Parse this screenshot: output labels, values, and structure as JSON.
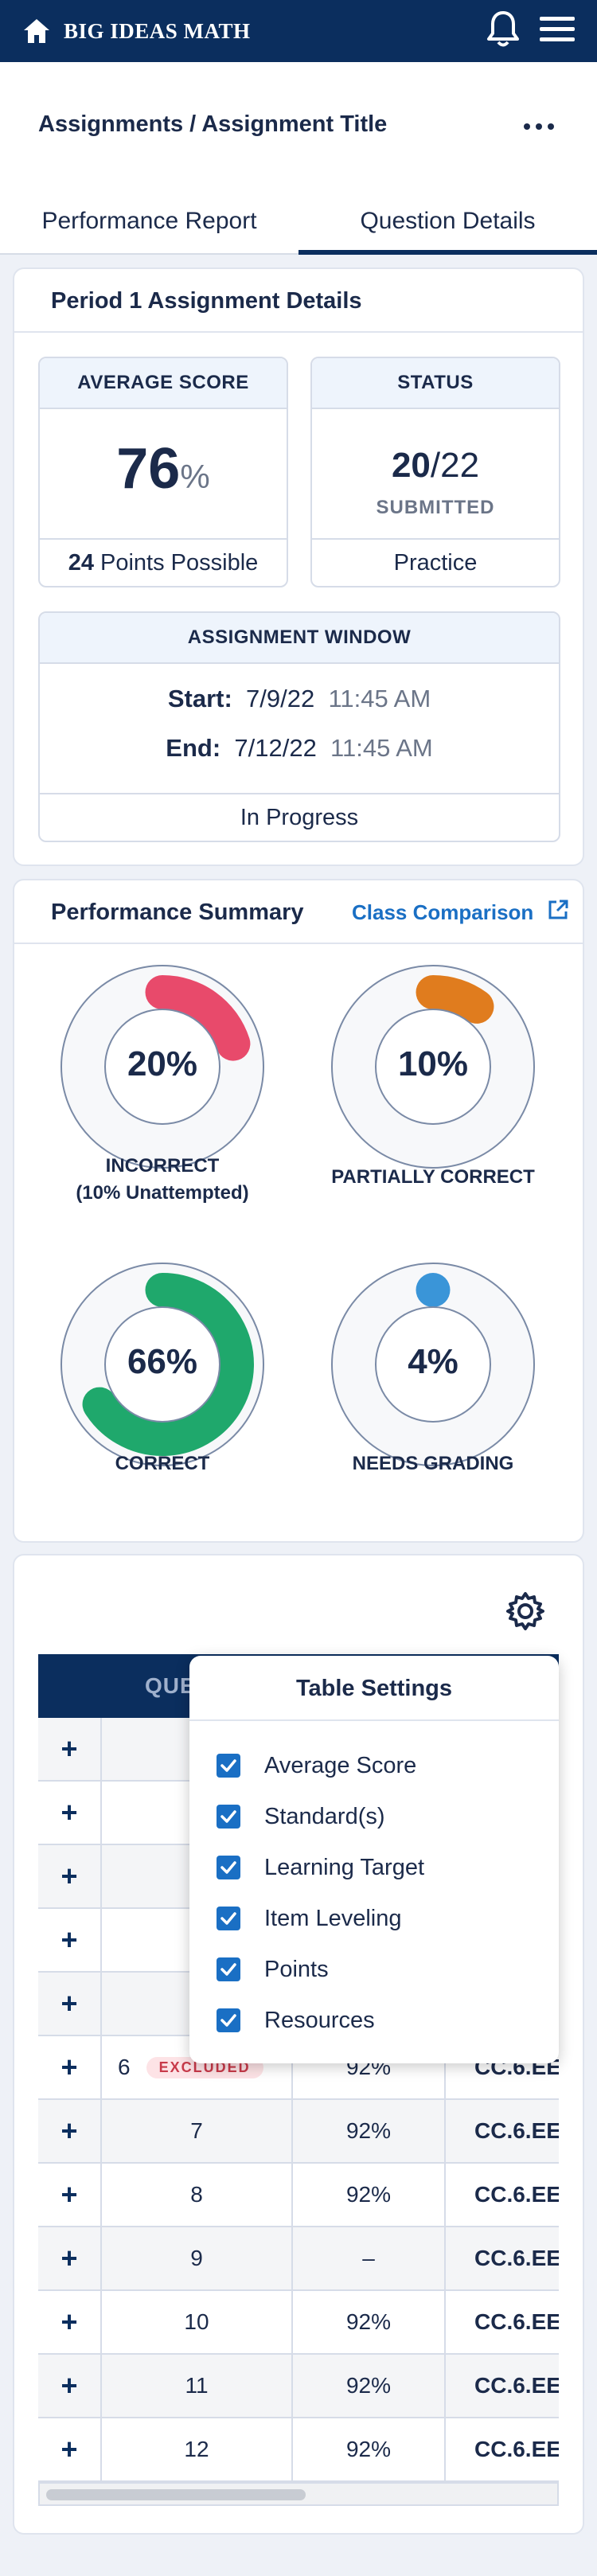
{
  "topbar": {
    "brand": "BIG IDEAS MATH",
    "icons": [
      "home-icon",
      "bell-icon",
      "menu-icon"
    ]
  },
  "header": {
    "breadcrumb": "Assignments / Assignment Title"
  },
  "tabs": [
    {
      "label": "Performance Report",
      "active": false
    },
    {
      "label": "Question Details",
      "active": true
    }
  ],
  "details": {
    "title": "Period 1 Assignment Details",
    "average": {
      "header": "AVERAGE SCORE",
      "value": "76",
      "unit": "%",
      "points": "24",
      "points_label": "Points Possible"
    },
    "status": {
      "header": "STATUS",
      "submitted": "20",
      "total": "/22",
      "label": "SUBMITTED",
      "footer": "Practice"
    },
    "window": {
      "header": "ASSIGNMENT WINDOW",
      "start_label": "Start:",
      "start_date": "7/9/22",
      "start_time": "11:45 AM",
      "end_label": "End:",
      "end_date": "7/12/22",
      "end_time": "11:45 AM",
      "footer": "In Progress"
    }
  },
  "summary": {
    "title": "Performance Summary",
    "link": "Class Comparison",
    "donuts": [
      {
        "value": "20%",
        "fraction": 0.2,
        "color": "#e84a6b",
        "label1": "INCORRECT",
        "label2": "(10% Unattempted)"
      },
      {
        "value": "10%",
        "fraction": 0.1,
        "color": "#e07c1e",
        "label1": "PARTIALLY CORRECT",
        "label2": ""
      },
      {
        "value": "66%",
        "fraction": 0.66,
        "color": "#1fa86c",
        "label1": "CORRECT",
        "label2": ""
      },
      {
        "value": "4%",
        "fraction": 0.04,
        "color": "#3a95d8",
        "label1": "NEEDS GRADING",
        "label2": ""
      }
    ]
  },
  "table": {
    "header_partial": "QUE",
    "rows": [
      {
        "q": "",
        "score": "",
        "std": ""
      },
      {
        "q": "",
        "score": "",
        "std": ""
      },
      {
        "q": "",
        "score": "",
        "std": ""
      },
      {
        "q": "",
        "score": "",
        "std": ""
      },
      {
        "q": "",
        "score": "",
        "std": ""
      },
      {
        "q": "6",
        "excluded": "EXCLUDED",
        "score": "92%",
        "std": "CC.6.EE"
      },
      {
        "q": "7",
        "score": "92%",
        "std": "CC.6.EE"
      },
      {
        "q": "8",
        "score": "92%",
        "std": "CC.6.EE"
      },
      {
        "q": "9",
        "score": "–",
        "std": "CC.6.EE"
      },
      {
        "q": "10",
        "score": "92%",
        "std": "CC.6.EE"
      },
      {
        "q": "11",
        "score": "92%",
        "std": "CC.6.EE"
      },
      {
        "q": "12",
        "score": "92%",
        "std": "CC.6.EE"
      }
    ],
    "expand_symbol": "+"
  },
  "settings": {
    "title": "Table Settings",
    "options": [
      {
        "label": "Average Score",
        "checked": true
      },
      {
        "label": "Standard(s)",
        "checked": true
      },
      {
        "label": "Learning Target",
        "checked": true
      },
      {
        "label": "Item Leveling",
        "checked": true
      },
      {
        "label": "Points",
        "checked": true
      },
      {
        "label": "Resources",
        "checked": true
      }
    ]
  }
}
